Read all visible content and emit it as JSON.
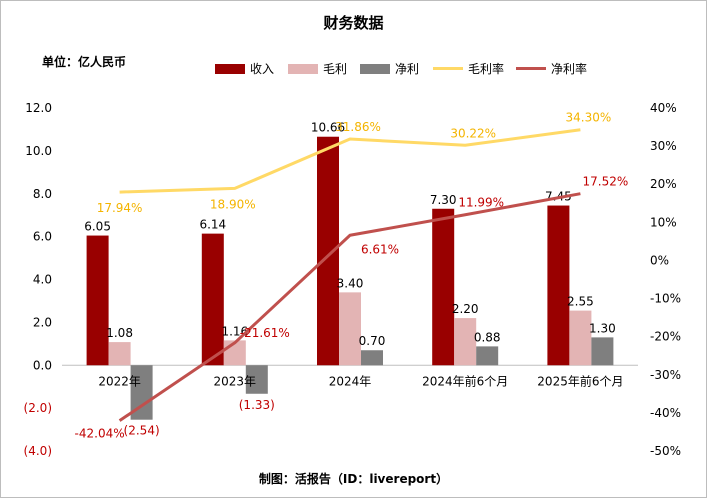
{
  "title": "财务数据",
  "unit_label": "单位：亿人民币",
  "footer": "制图：活报告（ID：livereport）",
  "colors": {
    "revenue": "#990000",
    "gross": "#e3b4b4",
    "net": "#7f7f7f",
    "gross_rate": "#ffd966",
    "net_rate": "#c0504d",
    "neg": "#c00000",
    "gross_rate_text": "#f4b400",
    "net_rate_text": "#c00000"
  },
  "chart_data": {
    "type": "bar+line",
    "categories": [
      "2022年",
      "2023年",
      "2024年",
      "2024年前6个月",
      "2025年前6个月"
    ],
    "series": [
      {
        "name": "收入",
        "type": "bar",
        "values": [
          6.05,
          6.14,
          10.66,
          7.3,
          7.45
        ],
        "labels": [
          "6.05",
          "6.14",
          "10.66",
          "7.30",
          "7.45"
        ]
      },
      {
        "name": "毛利",
        "type": "bar",
        "values": [
          1.08,
          1.16,
          3.4,
          2.2,
          2.55
        ],
        "labels": [
          "1.08",
          "1.16",
          "3.40",
          "2.20",
          "2.55"
        ]
      },
      {
        "name": "净利",
        "type": "bar",
        "values": [
          -2.54,
          -1.33,
          0.7,
          0.88,
          1.3
        ],
        "labels": [
          "(2.54)",
          "(1.33)",
          "0.70",
          "0.88",
          "1.30"
        ]
      },
      {
        "name": "毛利率",
        "type": "line",
        "axis": "right",
        "values": [
          17.94,
          18.9,
          31.86,
          30.22,
          34.3
        ],
        "labels": [
          "17.94%",
          "18.90%",
          "31.86%",
          "30.22%",
          "34.30%"
        ]
      },
      {
        "name": "净利率",
        "type": "line",
        "axis": "right",
        "values": [
          -42.04,
          -21.61,
          6.61,
          11.99,
          17.52
        ],
        "labels": [
          "-42.04%",
          "-21.61%",
          "6.61%",
          "11.99%",
          "17.52%"
        ]
      }
    ],
    "left_axis": {
      "min": -4,
      "max": 12,
      "step": 2,
      "tick_labels": [
        "(4.0)",
        "(2.0)",
        "0.0",
        "2.0",
        "4.0",
        "6.0",
        "8.0",
        "10.0",
        "12.0"
      ]
    },
    "right_axis": {
      "min": -50,
      "max": 40,
      "step": 10,
      "tick_labels": [
        "-50%",
        "-40%",
        "-30%",
        "-20%",
        "-10%",
        "0%",
        "10%",
        "20%",
        "30%",
        "40%"
      ]
    },
    "legend_position": "top"
  }
}
